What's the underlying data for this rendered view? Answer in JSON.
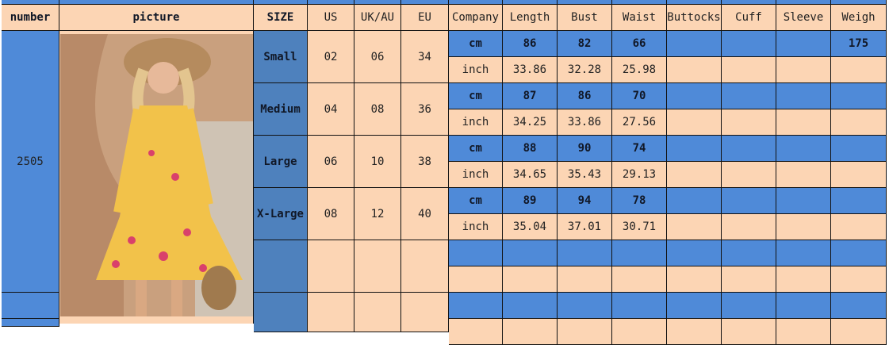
{
  "headers": [
    "number",
    "picture",
    "SIZE",
    "US",
    "UK/AU",
    "EU",
    "Company",
    "Length",
    "Bust",
    "Waist",
    "Buttocks",
    "Cuff",
    "Sleeve",
    "Weigh"
  ],
  "product_number": "2505",
  "sizes": [
    {
      "name": "Small",
      "us": "02",
      "uk": "06",
      "eu": "34",
      "cm": {
        "length": "86",
        "bust": "82",
        "waist": "66",
        "weigh": "175"
      },
      "inch": {
        "length": "33.86",
        "bust": "32.28",
        "waist": "25.98"
      }
    },
    {
      "name": "Medium",
      "us": "04",
      "uk": "08",
      "eu": "36",
      "cm": {
        "length": "87",
        "bust": "86",
        "waist": "70"
      },
      "inch": {
        "length": "34.25",
        "bust": "33.86",
        "waist": "27.56"
      }
    },
    {
      "name": "Large",
      "us": "06",
      "uk": "10",
      "eu": "38",
      "cm": {
        "length": "88",
        "bust": "90",
        "waist": "74"
      },
      "inch": {
        "length": "34.65",
        "bust": "35.43",
        "waist": "29.13"
      }
    },
    {
      "name": "X-Large",
      "us": "08",
      "uk": "12",
      "eu": "40",
      "cm": {
        "length": "89",
        "bust": "94",
        "waist": "78"
      },
      "inch": {
        "length": "35.04",
        "bust": "37.01",
        "waist": "30.71"
      }
    }
  ],
  "units": {
    "cm": "cm",
    "inch": "inch"
  },
  "colors": {
    "blue": "#4f8ad8",
    "size_blue": "#4e81bd",
    "peach": "#fcd5b4"
  }
}
